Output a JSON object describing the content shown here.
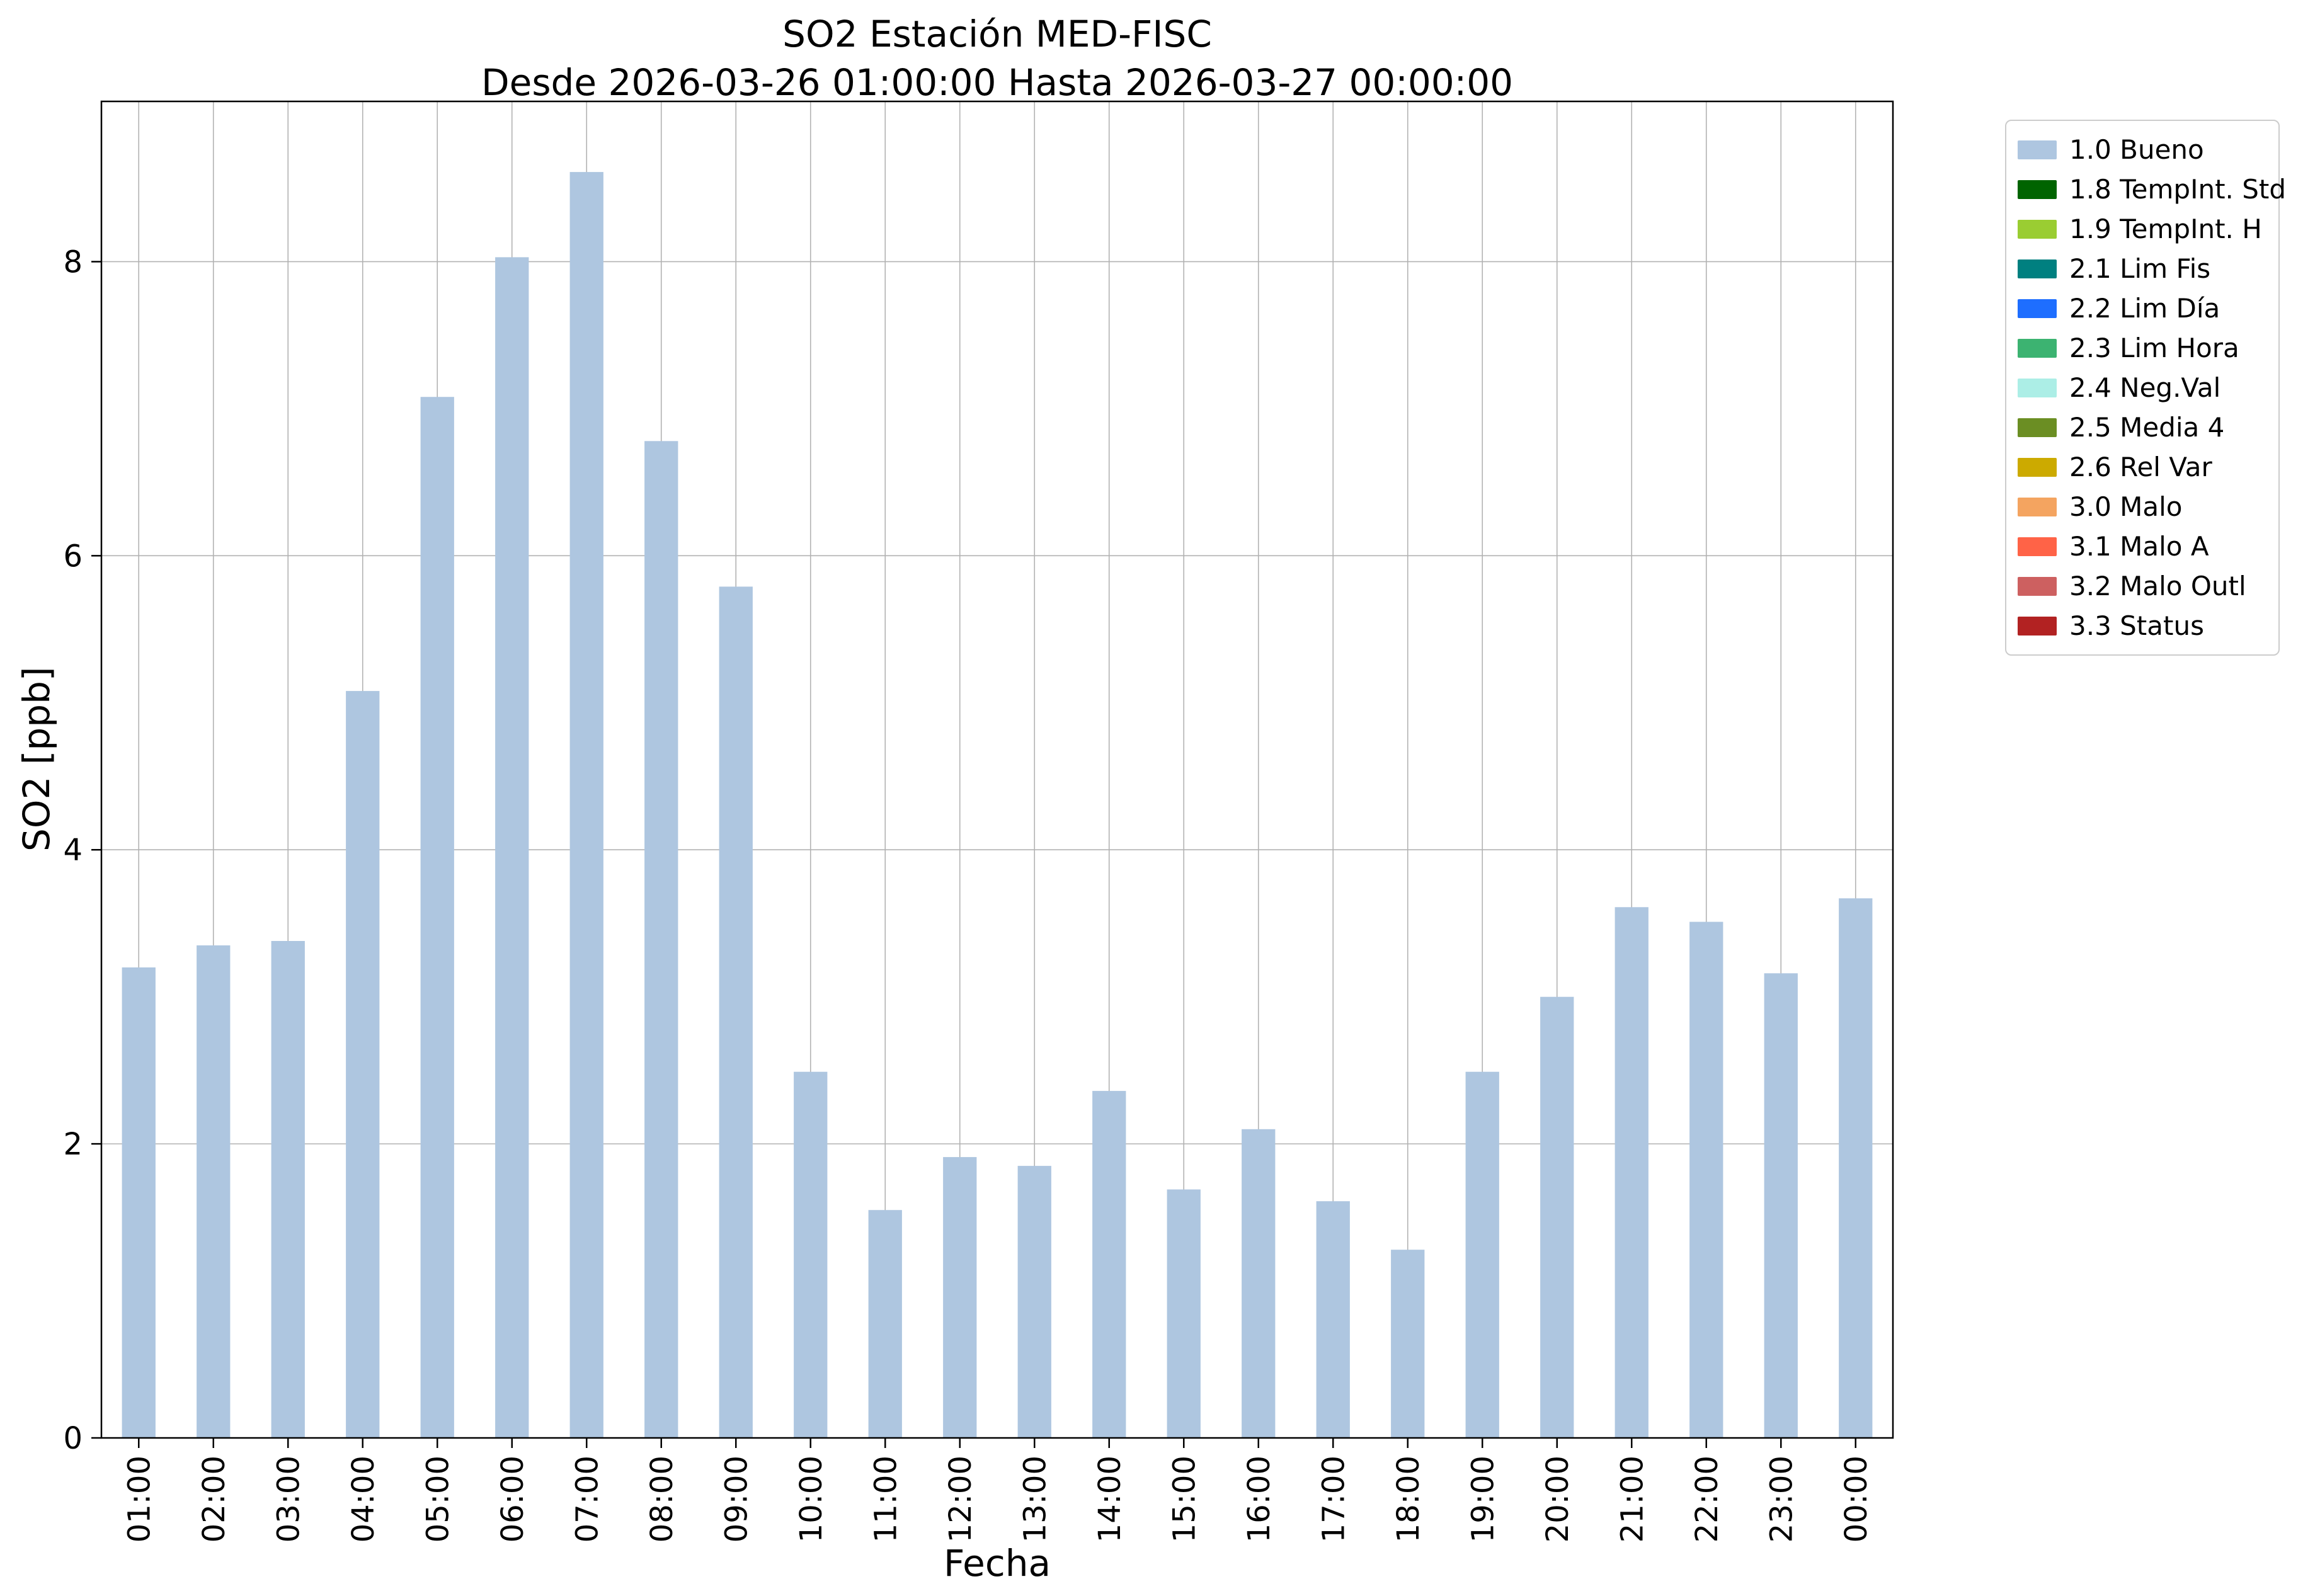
{
  "title": {
    "line1": "SO2 Estación MED-FISC",
    "line2": "Desde 2026-03-26 01:00:00 Hasta 2026-03-27 00:00:00"
  },
  "chart_data": {
    "type": "bar",
    "title": "SO2 Estación MED-FISC",
    "subtitle": "Desde 2026-03-26 01:00:00 Hasta 2026-03-27 00:00:00",
    "xlabel": "Fecha",
    "ylabel": "SO2 [ppb]",
    "ylim": [
      0,
      9.09
    ],
    "yticks": [
      0,
      2,
      4,
      6,
      8
    ],
    "grid": true,
    "legend_position": "upper-right-outside",
    "bar_color": "#aec6e0",
    "categories": [
      "01:00",
      "02:00",
      "03:00",
      "04:00",
      "05:00",
      "06:00",
      "07:00",
      "08:00",
      "09:00",
      "10:00",
      "11:00",
      "12:00",
      "13:00",
      "14:00",
      "15:00",
      "16:00",
      "17:00",
      "18:00",
      "19:00",
      "20:00",
      "21:00",
      "22:00",
      "23:00",
      "00:00"
    ],
    "values": [
      3.2,
      3.35,
      3.38,
      5.08,
      7.08,
      8.03,
      8.61,
      6.78,
      5.79,
      2.49,
      1.55,
      1.91,
      1.85,
      2.36,
      1.69,
      2.1,
      1.61,
      1.28,
      2.49,
      3.0,
      3.61,
      3.51,
      3.16,
      3.67
    ],
    "legend": {
      "entries": [
        {
          "label": "1.0 Bueno",
          "color": "#aec6e0"
        },
        {
          "label": "1.8 TempInt. Std",
          "color": "#006400"
        },
        {
          "label": "1.9 TempInt. H",
          "color": "#9acd32"
        },
        {
          "label": "2.1 Lim Fis",
          "color": "#008080"
        },
        {
          "label": "2.2 Lim Día",
          "color": "#1e6eff"
        },
        {
          "label": "2.3 Lim Hora",
          "color": "#3cb371"
        },
        {
          "label": "2.4 Neg.Val",
          "color": "#aceee6"
        },
        {
          "label": "2.5 Media 4",
          "color": "#6b8e23"
        },
        {
          "label": "2.6 Rel Var",
          "color": "#ccaa00"
        },
        {
          "label": "3.0 Malo",
          "color": "#f4a460"
        },
        {
          "label": "3.1 Malo A",
          "color": "#ff6347"
        },
        {
          "label": "3.2 Malo Outl",
          "color": "#cd6060"
        },
        {
          "label": "3.3 Status",
          "color": "#b22222"
        }
      ]
    }
  }
}
